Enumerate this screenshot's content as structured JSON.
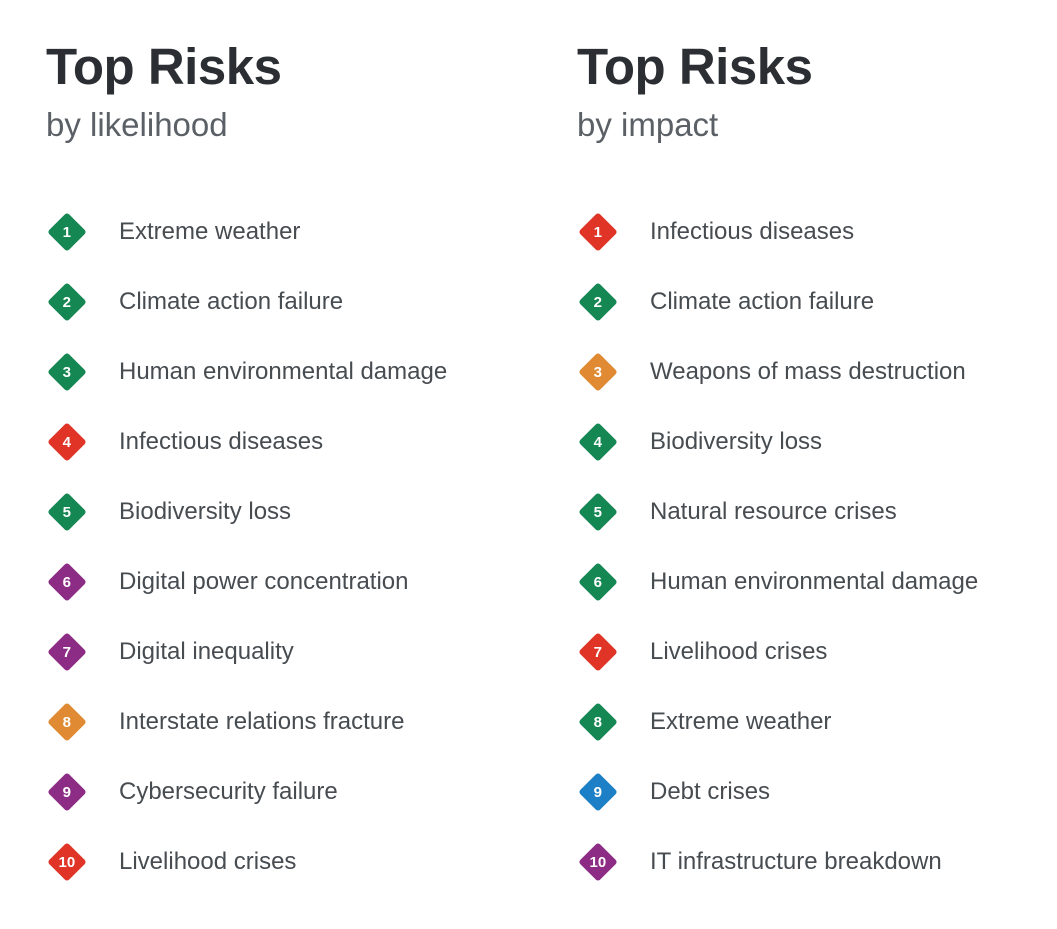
{
  "page_title": "Top Risks",
  "colors": {
    "background": "#ffffff",
    "title": "#2b2e32",
    "subtitle": "#5a6065",
    "label": "#474c51",
    "rank_number": "#ffffff",
    "environmental_green": "#148753",
    "societal_red": "#e03427",
    "technological_purple": "#8c2c84",
    "geopolitical_orange": "#e08a33",
    "economic_blue": "#1d7fc5"
  },
  "chart_data": [
    {
      "type": "table",
      "title": "Top Risks",
      "subtitle": "by likelihood",
      "columns": [
        "rank",
        "risk"
      ],
      "legend_position": "none",
      "items": [
        {
          "rank": "1",
          "label": "Extreme weather",
          "category": "environmental",
          "color": "#148753"
        },
        {
          "rank": "2",
          "label": "Climate action failure",
          "category": "environmental",
          "color": "#148753"
        },
        {
          "rank": "3",
          "label": "Human environmental damage",
          "category": "environmental",
          "color": "#148753"
        },
        {
          "rank": "4",
          "label": "Infectious diseases",
          "category": "societal",
          "color": "#e03427"
        },
        {
          "rank": "5",
          "label": "Biodiversity loss",
          "category": "environmental",
          "color": "#148753"
        },
        {
          "rank": "6",
          "label": "Digital power concentration",
          "category": "technological",
          "color": "#8c2c84"
        },
        {
          "rank": "7",
          "label": "Digital inequality",
          "category": "technological",
          "color": "#8c2c84"
        },
        {
          "rank": "8",
          "label": "Interstate relations fracture",
          "category": "geopolitical",
          "color": "#e08a33"
        },
        {
          "rank": "9",
          "label": "Cybersecurity failure",
          "category": "technological",
          "color": "#8c2c84"
        },
        {
          "rank": "10",
          "label": "Livelihood crises",
          "category": "societal",
          "color": "#e03427"
        }
      ]
    },
    {
      "type": "table",
      "title": "Top Risks",
      "subtitle": "by impact",
      "columns": [
        "rank",
        "risk"
      ],
      "legend_position": "none",
      "items": [
        {
          "rank": "1",
          "label": "Infectious diseases",
          "category": "societal",
          "color": "#e03427"
        },
        {
          "rank": "2",
          "label": "Climate action failure",
          "category": "environmental",
          "color": "#148753"
        },
        {
          "rank": "3",
          "label": "Weapons of mass destruction",
          "category": "geopolitical",
          "color": "#e08a33"
        },
        {
          "rank": "4",
          "label": "Biodiversity loss",
          "category": "environmental",
          "color": "#148753"
        },
        {
          "rank": "5",
          "label": "Natural resource crises",
          "category": "environmental",
          "color": "#148753"
        },
        {
          "rank": "6",
          "label": "Human environmental damage",
          "category": "environmental",
          "color": "#148753"
        },
        {
          "rank": "7",
          "label": "Livelihood crises",
          "category": "societal",
          "color": "#e03427"
        },
        {
          "rank": "8",
          "label": "Extreme weather",
          "category": "environmental",
          "color": "#148753"
        },
        {
          "rank": "9",
          "label": "Debt crises",
          "category": "economic",
          "color": "#1d7fc5"
        },
        {
          "rank": "10",
          "label": "IT infrastructure breakdown",
          "category": "technological",
          "color": "#8c2c84"
        }
      ]
    }
  ]
}
